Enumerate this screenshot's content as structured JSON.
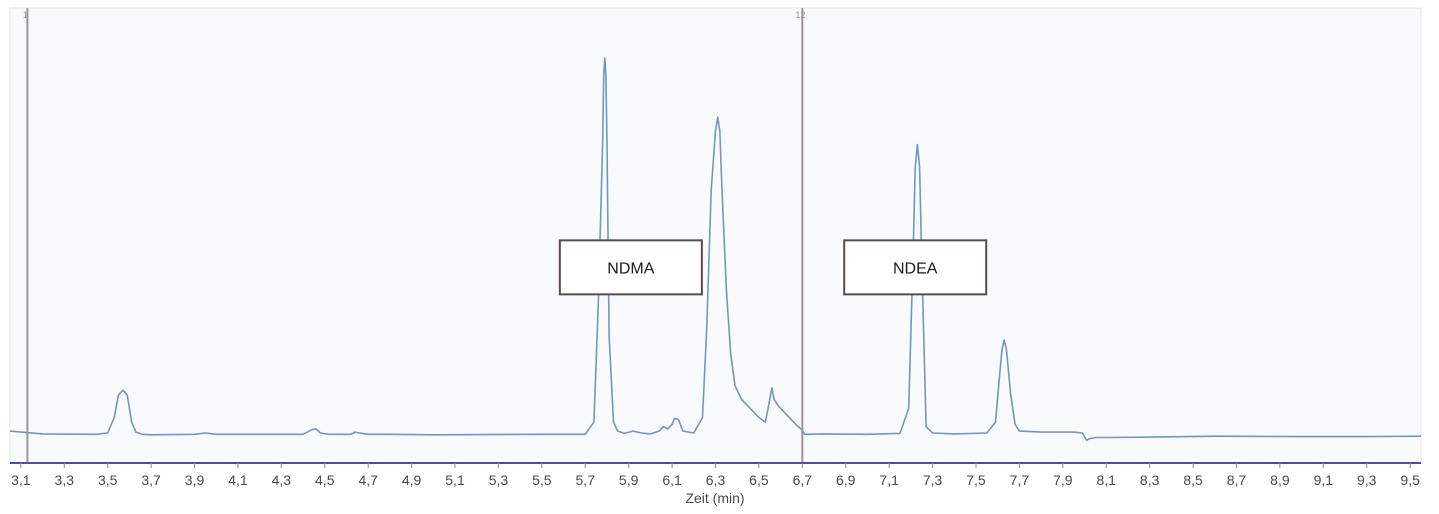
{
  "chart_data": {
    "type": "line",
    "xlabel": "Zeit (min)",
    "ylabel": "",
    "xlim": [
      3.05,
      9.55
    ],
    "ylim": [
      0,
      100
    ],
    "x_ticks": [
      "3,1",
      "3,3",
      "3,5",
      "3,7",
      "3,9",
      "4,1",
      "4,3",
      "4,5",
      "4,7",
      "4,9",
      "5,1",
      "5,3",
      "5,5",
      "5,7",
      "5,9",
      "6,1",
      "6,3",
      "6,5",
      "6,7",
      "6,9",
      "7,1",
      "7,3",
      "7,5",
      "7,7",
      "7,9",
      "8,1",
      "8,3",
      "8,5",
      "8,7",
      "8,9",
      "9,1",
      "9,3",
      "9,5"
    ],
    "colors": {
      "trace": "#6d97c9",
      "marker": "#9c9494",
      "axis": "#4b4fa3",
      "plot_bg": "#f9fafb"
    },
    "series": [
      {
        "x": [
          3.05,
          3.2,
          3.45,
          3.5,
          3.53,
          3.55,
          3.57,
          3.59,
          3.61,
          3.63,
          3.66,
          3.7,
          3.9,
          3.95,
          4.0,
          4.4,
          4.44,
          4.46,
          4.48,
          4.52,
          4.62,
          4.64,
          4.66,
          4.7,
          4.8,
          5.0,
          5.5,
          5.7,
          5.74,
          5.76,
          5.78,
          5.785,
          5.79,
          5.795,
          5.8,
          5.81,
          5.83,
          5.85,
          5.88,
          5.92,
          5.96,
          6.0,
          6.04,
          6.06,
          6.08,
          6.1,
          6.11,
          6.13,
          6.15,
          6.2,
          6.24,
          6.26,
          6.28,
          6.3,
          6.31,
          6.32,
          6.33,
          6.35,
          6.37,
          6.39,
          6.42,
          6.46,
          6.5,
          6.53,
          6.55,
          6.56,
          6.57,
          6.59,
          6.61,
          6.64,
          6.67,
          6.7,
          6.71,
          6.8,
          7.0,
          7.15,
          7.19,
          7.21,
          7.22,
          7.23,
          7.24,
          7.25,
          7.27,
          7.3,
          7.4,
          7.55,
          7.59,
          7.61,
          7.62,
          7.63,
          7.64,
          7.66,
          7.68,
          7.7,
          7.8,
          7.95,
          7.99,
          8.0,
          8.01,
          8.02,
          8.05,
          8.1,
          8.3,
          8.6,
          9.0,
          9.3,
          9.55
        ],
        "y": [
          7.0,
          6.4,
          6.3,
          6.6,
          10,
          15,
          16,
          15,
          9,
          6.8,
          6.3,
          6.2,
          6.3,
          6.6,
          6.3,
          6.3,
          7.3,
          7.5,
          6.6,
          6.3,
          6.3,
          6.8,
          6.6,
          6.3,
          6.3,
          6.2,
          6.3,
          6.3,
          9,
          35,
          70,
          85,
          89,
          85,
          70,
          28,
          9,
          7,
          6.5,
          7,
          6.6,
          6.4,
          7,
          8,
          7.5,
          8.5,
          9.8,
          9.5,
          7,
          6.6,
          10,
          30,
          60,
          73,
          76,
          73,
          60,
          38,
          24,
          17,
          14,
          12,
          10,
          9,
          14,
          16.5,
          14,
          12.5,
          11.5,
          10,
          8.5,
          7.2,
          6.3,
          6.4,
          6.3,
          6.5,
          12,
          45,
          65,
          70,
          65,
          45,
          8,
          6.6,
          6.4,
          6.6,
          9,
          20,
          25,
          27,
          25,
          15,
          8.5,
          7,
          6.8,
          6.8,
          6.6,
          5.8,
          5.0,
          5.3,
          5.6,
          5.6,
          5.7,
          5.9,
          5.8,
          5.8,
          5.9
        ]
      }
    ],
    "vertical_markers": [
      {
        "x": 3.13,
        "label": "1"
      },
      {
        "x": 6.7,
        "label": "12"
      }
    ],
    "annotations": [
      {
        "text": "NDMA",
        "x": 5.91,
        "y": 43
      },
      {
        "text": "NDEA",
        "x": 7.22,
        "y": 43
      }
    ]
  }
}
